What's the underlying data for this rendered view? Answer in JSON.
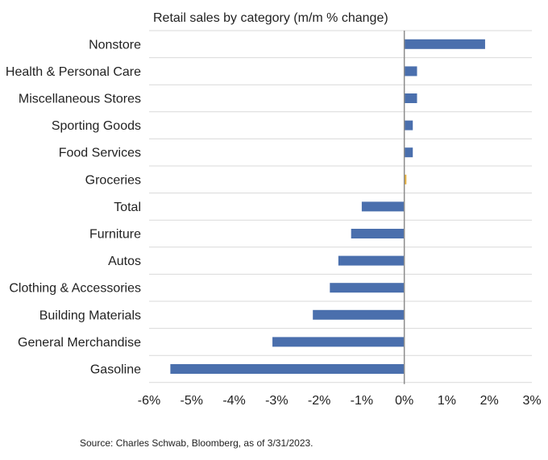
{
  "chart_data": {
    "type": "bar",
    "orientation": "horizontal",
    "title": "Retail sales by category (m/m % change)",
    "source": "Source: Charles Schwab, Bloomberg, as of 3/31/2023.",
    "categories": [
      "Nonstore",
      "Health & Personal Care",
      "Miscellaneous Stores",
      "Sporting Goods",
      "Food Services",
      "Groceries",
      "Total",
      "Furniture",
      "Autos",
      "Clothing & Accessories",
      "Building Materials",
      "General Merchandise",
      "Gasoline"
    ],
    "values": [
      1.9,
      0.3,
      0.3,
      0.2,
      0.2,
      0.05,
      -1.0,
      -1.25,
      -1.55,
      -1.75,
      -2.15,
      -3.1,
      -5.5
    ],
    "highlight_category": "Groceries",
    "colors": {
      "bar": "#4a6fad",
      "highlight": "#e8b13c",
      "zero_line": "#8c8c8c",
      "grid": "#d9d9d9"
    },
    "xlim": [
      -6,
      3
    ],
    "xticks": [
      -6,
      -5,
      -4,
      -3,
      -2,
      -1,
      0,
      1,
      2,
      3
    ],
    "xtick_labels": [
      "-6%",
      "-5%",
      "-4%",
      "-3%",
      "-2%",
      "-1%",
      "0%",
      "1%",
      "2%",
      "3%"
    ],
    "grid": true,
    "legend": "none"
  }
}
